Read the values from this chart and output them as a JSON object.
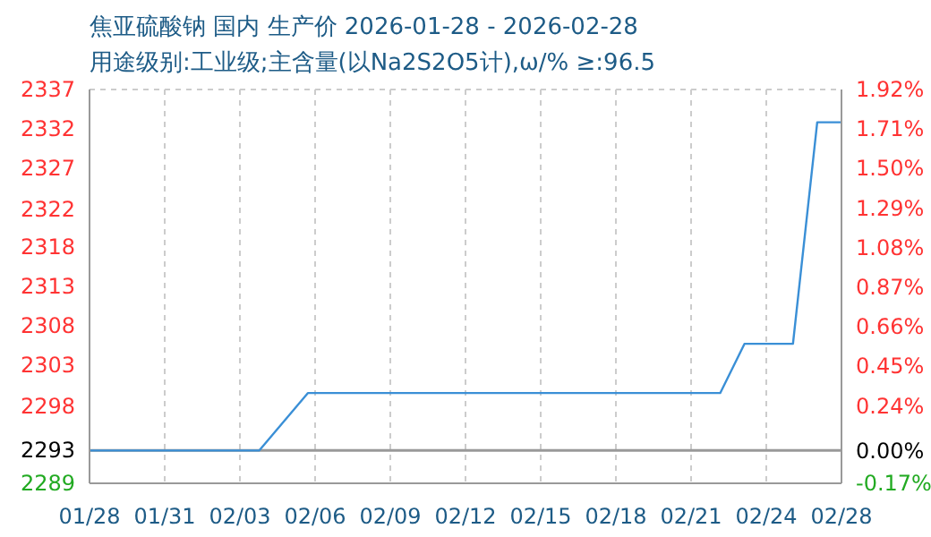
{
  "chart_data": {
    "type": "line",
    "title": "焦亚硫酸钠 国内 生产价 2026-01-28 - 2026-02-28",
    "subtitle": "用途级别:工业级;主含量(以Na2S2O5计),ω/%  ≥:96.5",
    "x": [
      "2026-01-28",
      "2026-02-04",
      "2026-02-06",
      "2026-02-23",
      "2026-02-24",
      "2026-02-26",
      "2026-02-27",
      "2026-02-28"
    ],
    "series": [
      {
        "color": "#3a8fd6",
        "values": [
          2293,
          2293,
          2300,
          2300,
          2306,
          2306,
          2333,
          2333
        ]
      }
    ],
    "xlim": [
      "2026-01-28",
      "2026-02-28"
    ],
    "xticks": [
      {
        "value": "2026-01-28",
        "label": "01/28"
      },
      {
        "value": "2026-01-31T02:24",
        "label": "01/31"
      },
      {
        "value": "2026-02-03T04:48",
        "label": "02/03"
      },
      {
        "value": "2026-02-06T07:12",
        "label": "02/06"
      },
      {
        "value": "2026-02-09T09:36",
        "label": "02/09"
      },
      {
        "value": "2026-02-12T12:00",
        "label": "02/12"
      },
      {
        "value": "2026-02-15T14:24",
        "label": "02/15"
      },
      {
        "value": "2026-02-18T16:48",
        "label": "02/18"
      },
      {
        "value": "2026-02-21T19:12",
        "label": "02/21"
      },
      {
        "value": "2026-02-24T21:36",
        "label": "02/24"
      },
      {
        "value": "2026-02-28",
        "label": "02/28"
      }
    ],
    "ylim": [
      2289,
      2337
    ],
    "yticks": [
      2289,
      2293,
      {
        "value": 2298.4,
        "label": "2298"
      },
      {
        "value": 2303.4,
        "label": "2303"
      },
      {
        "value": 2308.2,
        "label": "2308"
      },
      2313,
      {
        "value": 2317.8,
        "label": "2318"
      },
      {
        "value": 2322.4,
        "label": "2322"
      },
      {
        "value": 2327.4,
        "label": "2327"
      },
      {
        "value": 2332.2,
        "label": "2332"
      },
      2337
    ],
    "y2lim": [
      -0.17,
      1.92
    ],
    "y2ticks": [
      {
        "value": -0.17,
        "label": "-0.17%"
      },
      {
        "value": 0,
        "label": "0.00%"
      },
      {
        "value": 0.24,
        "label": "0.24%"
      },
      {
        "value": 0.45,
        "label": "0.45%"
      },
      {
        "value": 0.66,
        "label": "0.66%"
      },
      {
        "value": 0.87,
        "label": "0.87%"
      },
      {
        "value": 1.08,
        "label": "1.08%"
      },
      {
        "value": 1.29,
        "label": "1.29%"
      },
      {
        "value": 1.5,
        "label": "1.50%"
      },
      {
        "value": 1.71,
        "label": "1.71%"
      },
      {
        "value": 1.92,
        "label": "1.92%"
      }
    ],
    "ref_lines": [
      {
        "axis": "y",
        "value": 2293,
        "color": "#999999"
      }
    ],
    "grid": true,
    "marker": "none",
    "line_style": "solid"
  }
}
